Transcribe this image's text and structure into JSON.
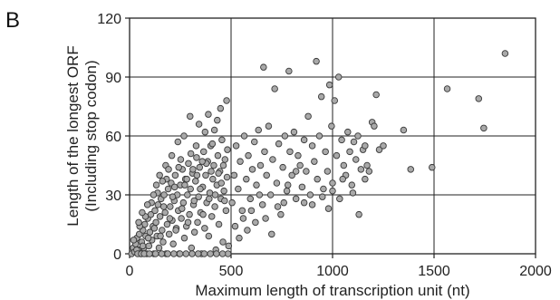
{
  "panel_label": "B",
  "chart_data": {
    "type": "scatter",
    "xlabel": "Maximum length of transcription unit (nt)",
    "ylabel": "Length of the longest ORF",
    "ylabel2": "(Including stop codon)",
    "xlim": [
      0,
      2000
    ],
    "ylim": [
      0,
      120
    ],
    "xticks": [
      0,
      500,
      1000,
      1500,
      2000
    ],
    "yticks": [
      0,
      30,
      60,
      90,
      120
    ],
    "grid": true,
    "marker_color": "#a9a9a9",
    "marker_edge": "#3a3a3a",
    "points": [
      [
        10,
        0
      ],
      [
        18,
        3
      ],
      [
        25,
        1
      ],
      [
        30,
        5
      ],
      [
        36,
        8
      ],
      [
        42,
        2
      ],
      [
        48,
        10
      ],
      [
        55,
        0
      ],
      [
        60,
        6
      ],
      [
        66,
        12
      ],
      [
        70,
        3
      ],
      [
        75,
        15
      ],
      [
        80,
        9
      ],
      [
        85,
        0
      ],
      [
        90,
        18
      ],
      [
        95,
        4
      ],
      [
        100,
        11
      ],
      [
        105,
        20
      ],
      [
        110,
        7
      ],
      [
        115,
        14
      ],
      [
        120,
        0
      ],
      [
        125,
        22
      ],
      [
        130,
        16
      ],
      [
        135,
        9
      ],
      [
        140,
        25
      ],
      [
        145,
        3
      ],
      [
        150,
        19
      ],
      [
        155,
        28
      ],
      [
        160,
        12
      ],
      [
        165,
        6
      ],
      [
        170,
        30
      ],
      [
        175,
        21
      ],
      [
        180,
        0
      ],
      [
        185,
        15
      ],
      [
        190,
        33
      ],
      [
        195,
        10
      ],
      [
        200,
        24
      ],
      [
        205,
        36
      ],
      [
        210,
        17
      ],
      [
        215,
        5
      ],
      [
        220,
        27
      ],
      [
        225,
        40
      ],
      [
        230,
        13
      ],
      [
        235,
        30
      ],
      [
        240,
        22
      ],
      [
        245,
        0
      ],
      [
        250,
        35
      ],
      [
        255,
        18
      ],
      [
        260,
        43
      ],
      [
        265,
        26
      ],
      [
        270,
        8
      ],
      [
        275,
        38
      ],
      [
        280,
        14
      ],
      [
        285,
        30
      ],
      [
        290,
        46
      ],
      [
        295,
        20
      ],
      [
        300,
        33
      ],
      [
        305,
        3
      ],
      [
        310,
        41
      ],
      [
        315,
        25
      ],
      [
        320,
        11
      ],
      [
        325,
        37
      ],
      [
        330,
        49
      ],
      [
        335,
        16
      ],
      [
        340,
        29
      ],
      [
        345,
        44
      ],
      [
        350,
        21
      ],
      [
        355,
        0
      ],
      [
        360,
        34
      ],
      [
        365,
        52
      ],
      [
        370,
        13
      ],
      [
        375,
        40
      ],
      [
        380,
        26
      ],
      [
        385,
        47
      ],
      [
        390,
        9
      ],
      [
        395,
        31
      ],
      [
        400,
        55
      ],
      [
        405,
        19
      ],
      [
        410,
        38
      ],
      [
        415,
        45
      ],
      [
        420,
        24
      ],
      [
        425,
        2
      ],
      [
        430,
        35
      ],
      [
        435,
        50
      ],
      [
        440,
        15
      ],
      [
        445,
        42
      ],
      [
        450,
        28
      ],
      [
        455,
        58
      ],
      [
        460,
        6
      ],
      [
        465,
        32
      ],
      [
        470,
        48
      ],
      [
        475,
        22
      ],
      [
        480,
        39
      ],
      [
        485,
        0
      ],
      [
        20,
        7
      ],
      [
        35,
        2
      ],
      [
        50,
        14
      ],
      [
        65,
        4
      ],
      [
        78,
        19
      ],
      [
        92,
        8
      ],
      [
        108,
        26
      ],
      [
        122,
        13
      ],
      [
        138,
        31
      ],
      [
        152,
        9
      ],
      [
        168,
        24
      ],
      [
        182,
        38
      ],
      [
        198,
        18
      ],
      [
        212,
        29
      ],
      [
        228,
        12
      ],
      [
        242,
        44
      ],
      [
        258,
        23
      ],
      [
        272,
        35
      ],
      [
        288,
        16
      ],
      [
        302,
        51
      ],
      [
        318,
        27
      ],
      [
        332,
        40
      ],
      [
        348,
        33
      ],
      [
        362,
        20
      ],
      [
        378,
        46
      ],
      [
        392,
        28
      ],
      [
        408,
        56
      ],
      [
        422,
        30
      ],
      [
        438,
        41
      ],
      [
        452,
        36
      ],
      [
        468,
        27
      ],
      [
        482,
        53
      ],
      [
        45,
        16
      ],
      [
        62,
        21
      ],
      [
        88,
        25
      ],
      [
        118,
        30
      ],
      [
        132,
        35
      ],
      [
        148,
        40
      ],
      [
        162,
        37
      ],
      [
        178,
        45
      ],
      [
        192,
        43
      ],
      [
        208,
        50
      ],
      [
        222,
        34
      ],
      [
        238,
        57
      ],
      [
        252,
        48
      ],
      [
        268,
        60
      ],
      [
        282,
        38
      ],
      [
        298,
        70
      ],
      [
        312,
        43
      ],
      [
        328,
        55
      ],
      [
        342,
        66
      ],
      [
        358,
        47
      ],
      [
        372,
        62
      ],
      [
        388,
        71
      ],
      [
        402,
        42
      ],
      [
        418,
        63
      ],
      [
        432,
        68
      ],
      [
        448,
        74
      ],
      [
        462,
        45
      ],
      [
        478,
        78
      ],
      [
        40,
        0
      ],
      [
        58,
        0
      ],
      [
        72,
        0
      ],
      [
        98,
        0
      ],
      [
        128,
        0
      ],
      [
        158,
        0
      ],
      [
        188,
        0
      ],
      [
        218,
        0
      ],
      [
        248,
        0
      ],
      [
        278,
        0
      ],
      [
        308,
        0
      ],
      [
        338,
        0
      ],
      [
        368,
        0
      ],
      [
        398,
        0
      ],
      [
        428,
        0
      ],
      [
        458,
        0
      ],
      [
        488,
        4
      ],
      [
        505,
        26
      ],
      [
        515,
        40
      ],
      [
        525,
        55
      ],
      [
        535,
        33
      ],
      [
        545,
        47
      ],
      [
        555,
        22
      ],
      [
        565,
        60
      ],
      [
        575,
        38
      ],
      [
        585,
        50
      ],
      [
        595,
        28
      ],
      [
        605,
        43
      ],
      [
        615,
        57
      ],
      [
        625,
        35
      ],
      [
        635,
        63
      ],
      [
        645,
        45
      ],
      [
        655,
        25
      ],
      [
        660,
        95
      ],
      [
        665,
        52
      ],
      [
        675,
        40
      ],
      [
        685,
        65
      ],
      [
        695,
        30
      ],
      [
        705,
        48
      ],
      [
        715,
        84
      ],
      [
        725,
        36
      ],
      [
        735,
        56
      ],
      [
        745,
        20
      ],
      [
        755,
        44
      ],
      [
        765,
        60
      ],
      [
        775,
        32
      ],
      [
        785,
        93
      ],
      [
        790,
        52
      ],
      [
        800,
        40
      ],
      [
        810,
        62
      ],
      [
        820,
        28
      ],
      [
        830,
        50
      ],
      [
        840,
        45
      ],
      [
        850,
        34
      ],
      [
        860,
        58
      ],
      [
        870,
        42
      ],
      [
        880,
        70
      ],
      [
        890,
        30
      ],
      [
        900,
        55
      ],
      [
        910,
        47
      ],
      [
        920,
        98
      ],
      [
        925,
        38
      ],
      [
        935,
        60
      ],
      [
        945,
        80
      ],
      [
        955,
        33
      ],
      [
        965,
        52
      ],
      [
        975,
        42
      ],
      [
        985,
        86
      ],
      [
        995,
        65
      ],
      [
        1000,
        36
      ],
      [
        1010,
        78
      ],
      [
        1020,
        50
      ],
      [
        1030,
        90
      ],
      [
        1035,
        28
      ],
      [
        1045,
        58
      ],
      [
        1055,
        45
      ],
      [
        1065,
        40
      ],
      [
        1075,
        62
      ],
      [
        1085,
        52
      ],
      [
        1095,
        35
      ],
      [
        1105,
        57
      ],
      [
        1115,
        48
      ],
      [
        1125,
        60
      ],
      [
        1130,
        20
      ],
      [
        1140,
        43
      ],
      [
        1150,
        53
      ],
      [
        1160,
        38
      ],
      [
        1170,
        45
      ],
      [
        1180,
        42
      ],
      [
        1195,
        67
      ],
      [
        1205,
        65
      ],
      [
        1215,
        81
      ],
      [
        1230,
        53
      ],
      [
        1250,
        55
      ],
      [
        520,
        14
      ],
      [
        540,
        8
      ],
      [
        560,
        18
      ],
      [
        580,
        12
      ],
      [
        600,
        22
      ],
      [
        620,
        16
      ],
      [
        640,
        30
      ],
      [
        670,
        18
      ],
      [
        700,
        10
      ],
      [
        730,
        24
      ],
      [
        760,
        26
      ],
      [
        780,
        35
      ],
      [
        820,
        42
      ],
      [
        860,
        26
      ],
      [
        900,
        25
      ],
      [
        950,
        29
      ],
      [
        980,
        23
      ],
      [
        1050,
        38
      ],
      [
        1100,
        31
      ],
      [
        1000,
        32
      ],
      [
        1160,
        55
      ],
      [
        1350,
        63
      ],
      [
        1385,
        43
      ],
      [
        1490,
        44
      ],
      [
        1565,
        84
      ],
      [
        1720,
        79
      ],
      [
        1745,
        64
      ],
      [
        1850,
        102
      ]
    ]
  }
}
